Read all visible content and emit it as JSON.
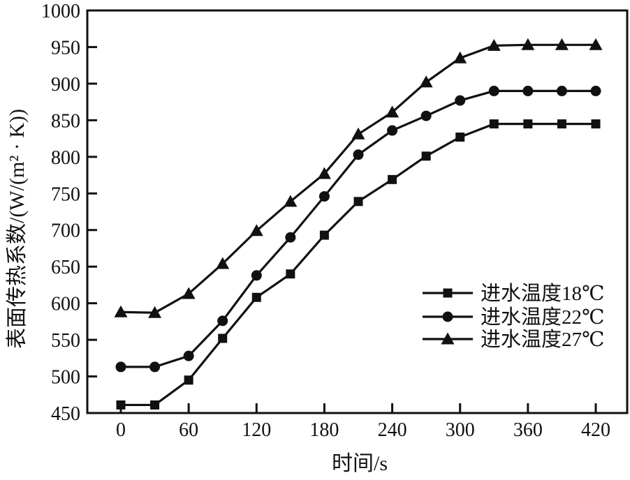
{
  "colors": {
    "ink": "#111111",
    "background": "#ffffff"
  },
  "chart_data": {
    "type": "line",
    "title": "",
    "xlabel": "时间/s",
    "ylabel": "表面传热系数/(W/(m² · K))",
    "grid": false,
    "legend_position": "inside-right-middle",
    "xlim": [
      -30,
      450
    ],
    "ylim": [
      450,
      1000
    ],
    "x_ticks": [
      0,
      60,
      120,
      180,
      240,
      300,
      360,
      420
    ],
    "y_ticks": [
      450,
      500,
      550,
      600,
      650,
      700,
      750,
      800,
      850,
      900,
      950,
      1000
    ],
    "x": [
      0,
      30,
      60,
      90,
      120,
      150,
      180,
      210,
      240,
      270,
      300,
      330,
      360,
      390,
      420
    ],
    "series": [
      {
        "name": "进水温度18℃",
        "marker": "square",
        "color": "#111111",
        "values": [
          461,
          461,
          495,
          552,
          608,
          640,
          693,
          739,
          769,
          801,
          827,
          845,
          845,
          845,
          845
        ]
      },
      {
        "name": "进水温度22℃",
        "marker": "circle",
        "color": "#111111",
        "values": [
          513,
          513,
          528,
          576,
          638,
          690,
          746,
          803,
          836,
          856,
          877,
          890,
          890,
          890,
          890
        ]
      },
      {
        "name": "进水温度27℃",
        "marker": "triangle",
        "color": "#111111",
        "values": [
          588,
          587,
          613,
          654,
          699,
          739,
          777,
          831,
          861,
          902,
          935,
          952,
          953,
          953,
          953
        ]
      }
    ]
  }
}
